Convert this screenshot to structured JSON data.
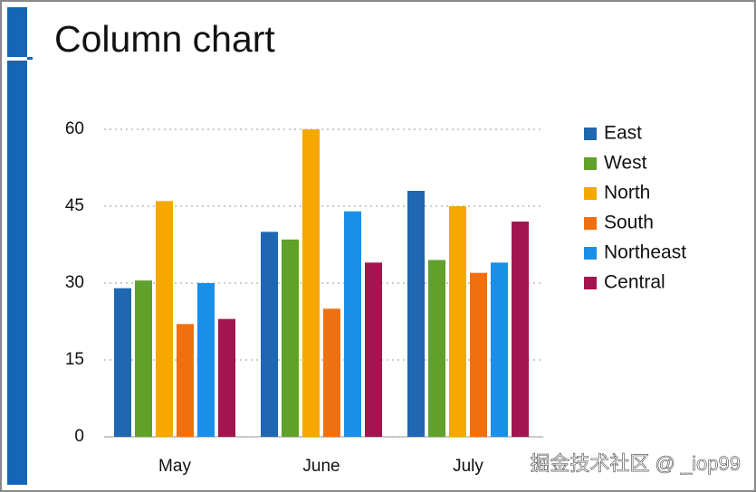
{
  "chart_data": {
    "type": "bar",
    "title": "Column chart",
    "categories": [
      "May",
      "June",
      "July"
    ],
    "series": [
      {
        "name": "East",
        "color": "#1f67b1",
        "values": [
          29,
          40,
          48
        ]
      },
      {
        "name": "West",
        "color": "#5fa12a",
        "values": [
          30.5,
          38.5,
          34.5
        ]
      },
      {
        "name": "North",
        "color": "#f5a800",
        "values": [
          46,
          60,
          45
        ]
      },
      {
        "name": "South",
        "color": "#f0700f",
        "values": [
          22,
          25,
          32
        ]
      },
      {
        "name": "Northeast",
        "color": "#1a8fe8",
        "values": [
          30,
          44,
          34
        ]
      },
      {
        "name": "Central",
        "color": "#a3154f",
        "values": [
          23,
          34,
          42
        ]
      }
    ],
    "ylim": [
      0,
      60
    ],
    "yticks": [
      0,
      15,
      30,
      45,
      60
    ],
    "grid": true,
    "legend": "right"
  },
  "watermark": "掘金技术社区 @ _iop99"
}
